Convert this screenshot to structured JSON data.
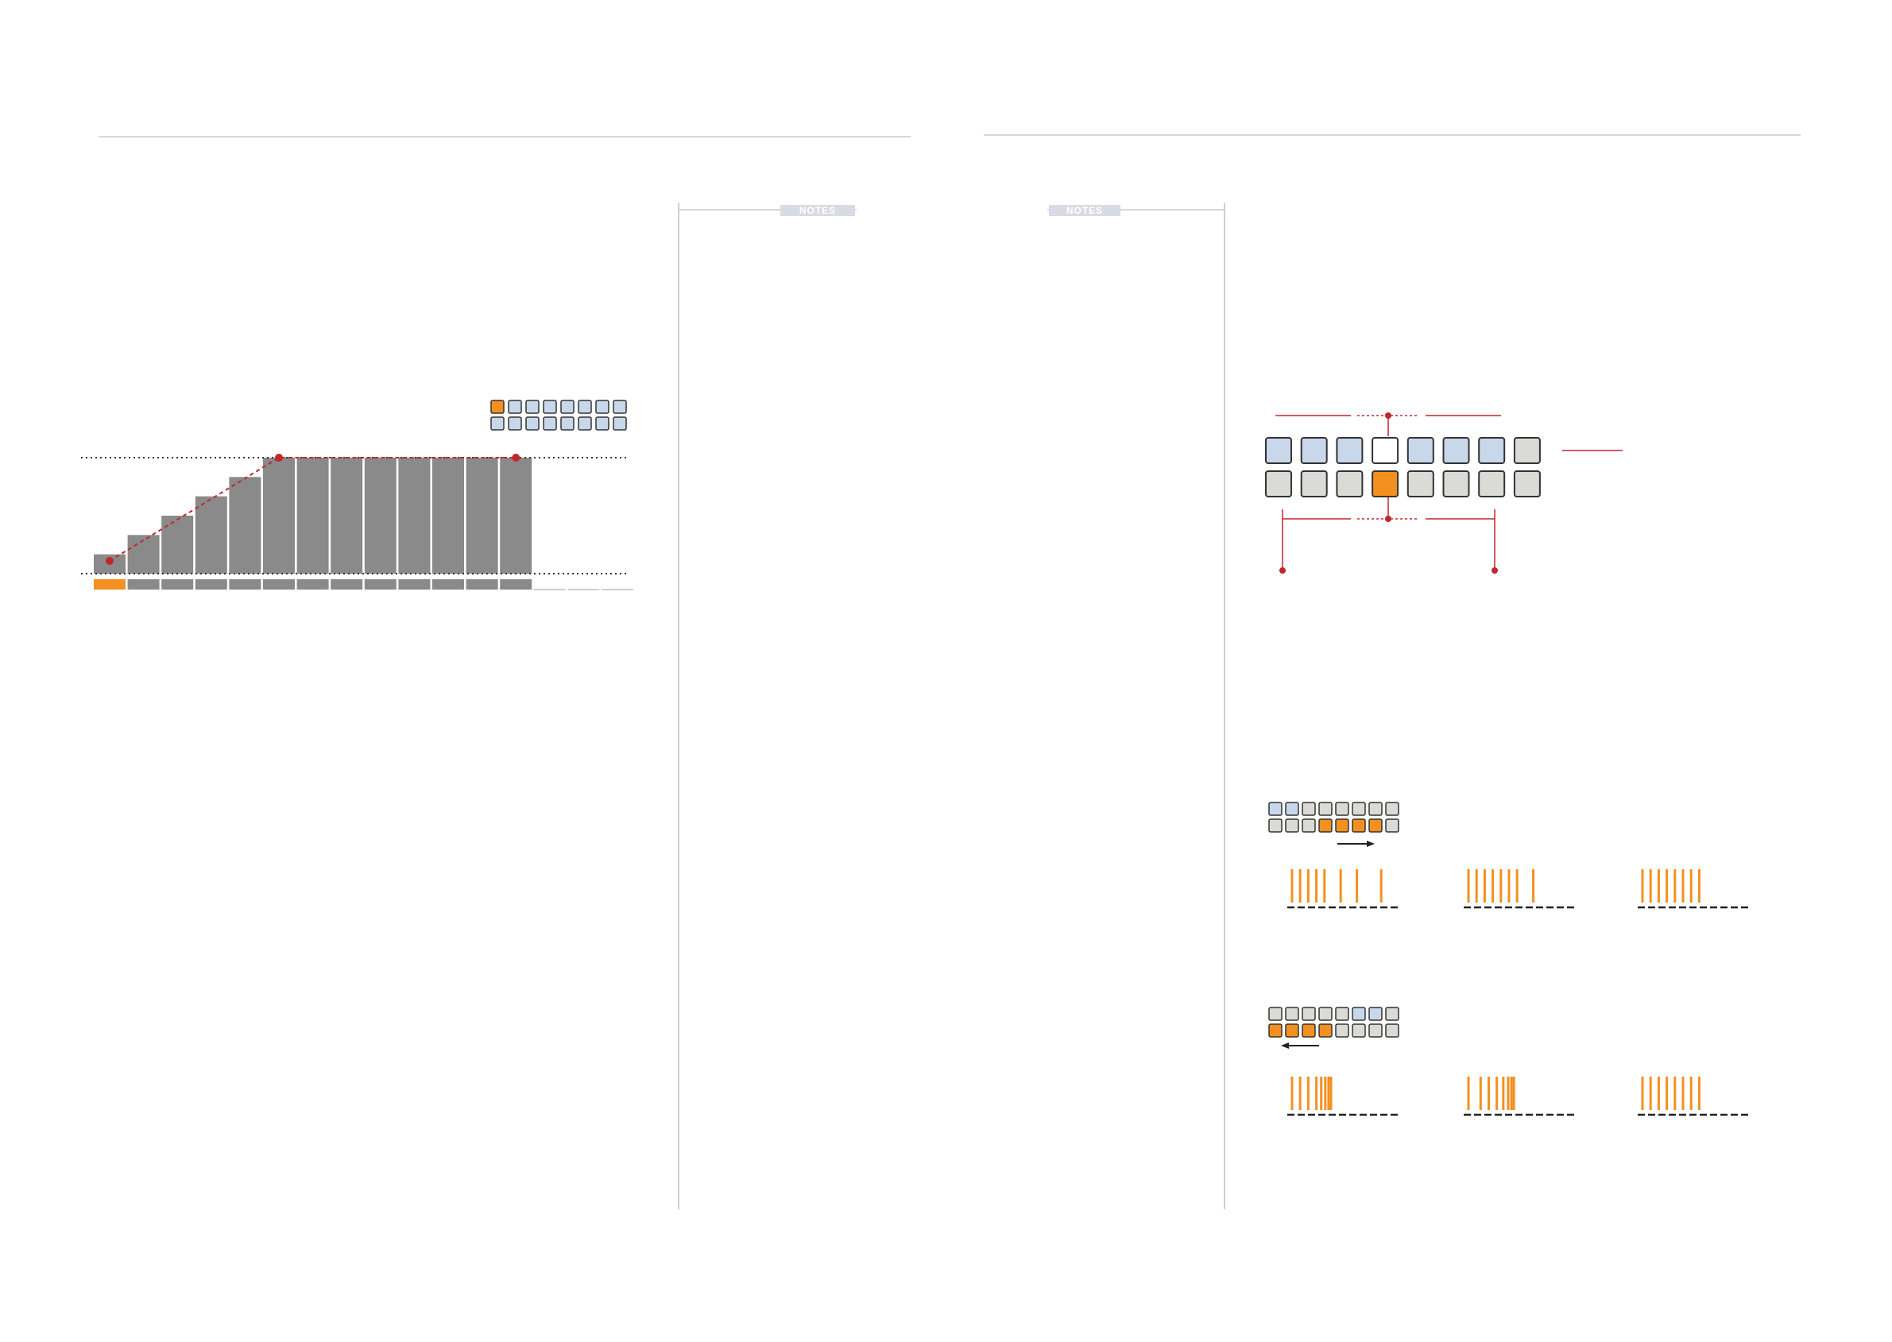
{
  "document": {
    "type": "manual-spread",
    "pages": [
      "left",
      "right"
    ]
  },
  "notes_tabs": [
    {
      "label": "NOTES"
    },
    {
      "label": "NOTES"
    }
  ],
  "colors": {
    "bar": "#8a8a8a",
    "accent": "#f39020",
    "pad_blue": "#c8d7ea",
    "pad_grey": "#dadad6",
    "pad_white": "#ffffff",
    "guide_red": "#c0272d",
    "rule": "#d8d8d8",
    "tab_bg": "#d9dbe4"
  },
  "ramp_chart": {
    "type": "bar",
    "step_count": 16,
    "active_steps": 13,
    "values": [
      1,
      2,
      3,
      4,
      5,
      6,
      6,
      6,
      6,
      6,
      6,
      6,
      6
    ],
    "ylim": [
      0,
      6
    ],
    "highlighted_step": 1,
    "markers_at_steps": [
      1,
      6,
      13
    ],
    "reference_lines": [
      "top",
      "bottom"
    ],
    "pad_legend": {
      "rows": 2,
      "cols": 8,
      "highlighted": [
        [
          0,
          0
        ]
      ]
    }
  },
  "pad_diagram": {
    "rows": [
      [
        "blue",
        "blue",
        "blue",
        "white",
        "blue",
        "blue",
        "blue",
        "grey"
      ],
      [
        "grey",
        "grey",
        "grey",
        "orange",
        "grey",
        "grey",
        "grey",
        "grey"
      ]
    ]
  },
  "roll_examples": [
    {
      "direction": "right",
      "pads": [
        [
          "blue",
          "blue",
          "grey",
          "grey",
          "grey",
          "grey",
          "grey",
          "grey"
        ],
        [
          "grey",
          "grey",
          "grey",
          "orange",
          "orange",
          "orange",
          "orange",
          "grey"
        ]
      ],
      "patterns": [
        [
          0,
          1,
          2,
          3,
          4,
          6,
          8,
          11
        ],
        [
          0,
          1,
          2,
          3,
          4,
          5,
          6,
          8
        ],
        [
          0,
          1,
          2,
          3,
          4,
          5,
          6,
          7
        ]
      ]
    },
    {
      "direction": "left",
      "pads": [
        [
          "grey",
          "grey",
          "grey",
          "grey",
          "grey",
          "blue",
          "blue",
          "grey"
        ],
        [
          "orange",
          "orange",
          "orange",
          "orange",
          "grey",
          "grey",
          "grey",
          "grey"
        ]
      ],
      "patterns": [
        [
          0,
          1,
          2,
          3,
          3.6,
          4.1,
          4.5,
          4.8
        ],
        [
          0,
          1.5,
          2.5,
          3.5,
          4.3,
          4.9,
          5.3,
          5.6
        ],
        [
          0,
          1,
          2,
          3,
          4,
          5,
          6,
          7
        ]
      ]
    }
  ]
}
